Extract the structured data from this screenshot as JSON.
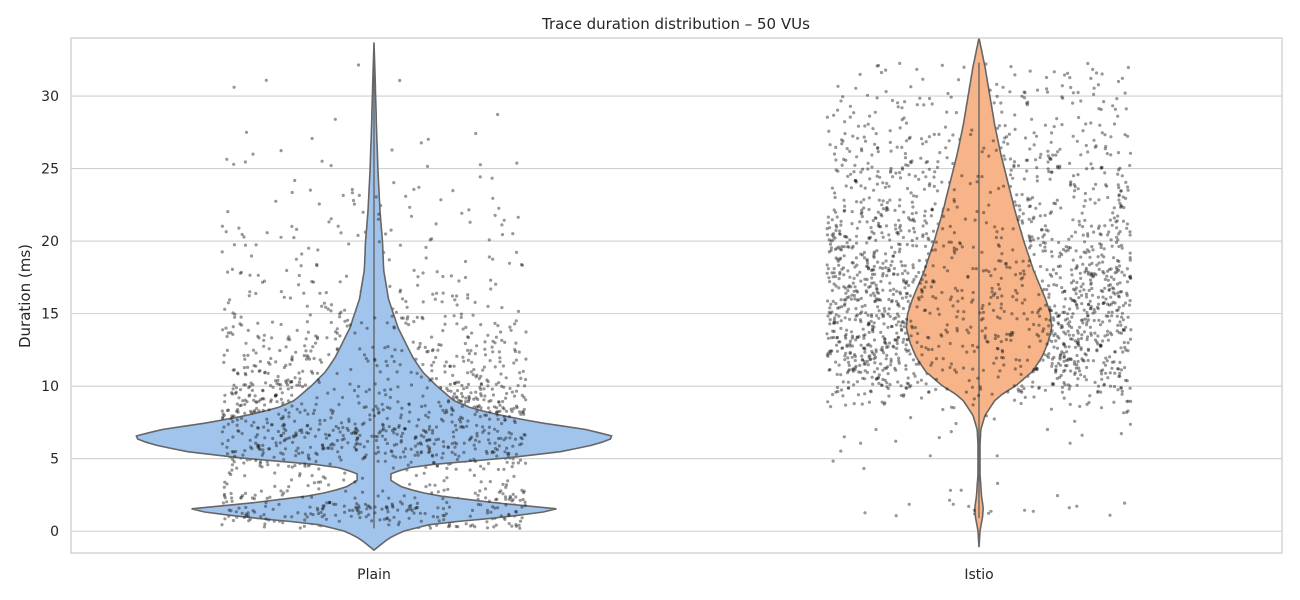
{
  "chart_data": {
    "type": "violin",
    "title": "Trace duration distribution – 50 VUs",
    "xlabel": "",
    "ylabel": "Duration (ms)",
    "categories": [
      "Plain",
      "Istio"
    ],
    "ylim": [
      -1.5,
      34
    ],
    "yticks": [
      0,
      5,
      10,
      15,
      20,
      25,
      30
    ],
    "grid": "horizontal",
    "colors": {
      "Plain": "#a1c4ec",
      "Istio": "#f7b488",
      "outline": "#666666",
      "points": "#1a1a1a"
    },
    "series": [
      {
        "name": "Plain",
        "range": [
          0.2,
          32.3
        ],
        "violin_min": -1.3,
        "violin_max": 33.7,
        "density_profile": [
          [
            -1.3,
            0.0
          ],
          [
            -0.5,
            0.06
          ],
          [
            0.0,
            0.12
          ],
          [
            0.5,
            0.24
          ],
          [
            1.0,
            0.55
          ],
          [
            1.5,
            0.78
          ],
          [
            2.0,
            0.48
          ],
          [
            2.5,
            0.24
          ],
          [
            3.0,
            0.12
          ],
          [
            3.5,
            0.07
          ],
          [
            4.0,
            0.07
          ],
          [
            4.5,
            0.17
          ],
          [
            5.0,
            0.52
          ],
          [
            5.5,
            0.78
          ],
          [
            6.0,
            0.92
          ],
          [
            6.5,
            1.0
          ],
          [
            7.0,
            0.88
          ],
          [
            7.5,
            0.68
          ],
          [
            8.0,
            0.52
          ],
          [
            8.5,
            0.4
          ],
          [
            9.0,
            0.33
          ],
          [
            10.0,
            0.26
          ],
          [
            11.0,
            0.2
          ],
          [
            12.0,
            0.16
          ],
          [
            13.0,
            0.13
          ],
          [
            14.0,
            0.1
          ],
          [
            15.0,
            0.08
          ],
          [
            16.0,
            0.06
          ],
          [
            17.0,
            0.05
          ],
          [
            18.0,
            0.04
          ],
          [
            20.0,
            0.035
          ],
          [
            22.0,
            0.025
          ],
          [
            25.0,
            0.016
          ],
          [
            28.0,
            0.01
          ],
          [
            31.0,
            0.005
          ],
          [
            33.7,
            0.0
          ]
        ]
      },
      {
        "name": "Istio",
        "range": [
          0.9,
          32.3
        ],
        "violin_min": -1.1,
        "violin_max": 34.0,
        "density_profile": [
          [
            -1.1,
            0.0
          ],
          [
            0.0,
            0.008
          ],
          [
            1.0,
            0.03
          ],
          [
            1.6,
            0.035
          ],
          [
            2.5,
            0.02
          ],
          [
            4.0,
            0.008
          ],
          [
            6.0,
            0.008
          ],
          [
            7.0,
            0.015
          ],
          [
            8.0,
            0.05
          ],
          [
            9.0,
            0.13
          ],
          [
            9.5,
            0.2
          ],
          [
            10.0,
            0.3
          ],
          [
            11.0,
            0.44
          ],
          [
            12.0,
            0.52
          ],
          [
            13.0,
            0.57
          ],
          [
            14.0,
            0.6
          ],
          [
            15.0,
            0.59
          ],
          [
            16.0,
            0.55
          ],
          [
            17.0,
            0.5
          ],
          [
            18.0,
            0.45
          ],
          [
            19.0,
            0.41
          ],
          [
            20.0,
            0.37
          ],
          [
            22.0,
            0.3
          ],
          [
            24.0,
            0.24
          ],
          [
            26.0,
            0.18
          ],
          [
            28.0,
            0.13
          ],
          [
            30.0,
            0.09
          ],
          [
            32.0,
            0.05
          ],
          [
            33.0,
            0.025
          ],
          [
            34.0,
            0.0
          ]
        ]
      }
    ]
  }
}
